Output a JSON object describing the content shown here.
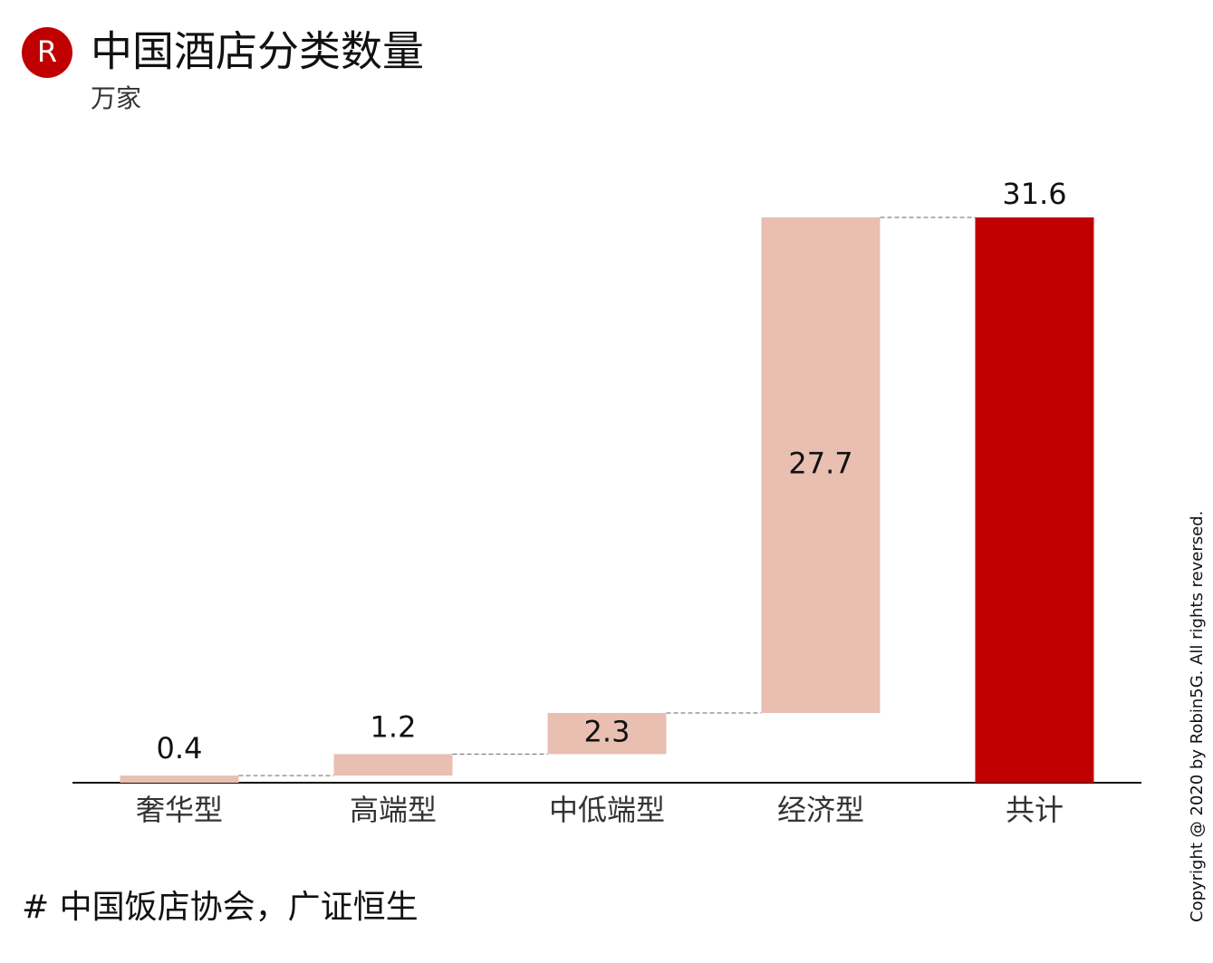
{
  "logo": "R",
  "chart_data": {
    "type": "waterfall",
    "title": "中国酒店分类数量",
    "subtitle": "万家",
    "categories": [
      "奢华型",
      "高端型",
      "中低端型",
      "经济型"
    ],
    "values": [
      0.4,
      1.2,
      2.3,
      27.7
    ],
    "color": "#e8bfb0",
    "total": {
      "label": "共计",
      "value": 31.6,
      "color": "#c00000"
    },
    "source": "# 中国饭店协会，广证恒生"
  },
  "copyright": "Copyright @ 2020 by Robin5G. All rights reversed."
}
